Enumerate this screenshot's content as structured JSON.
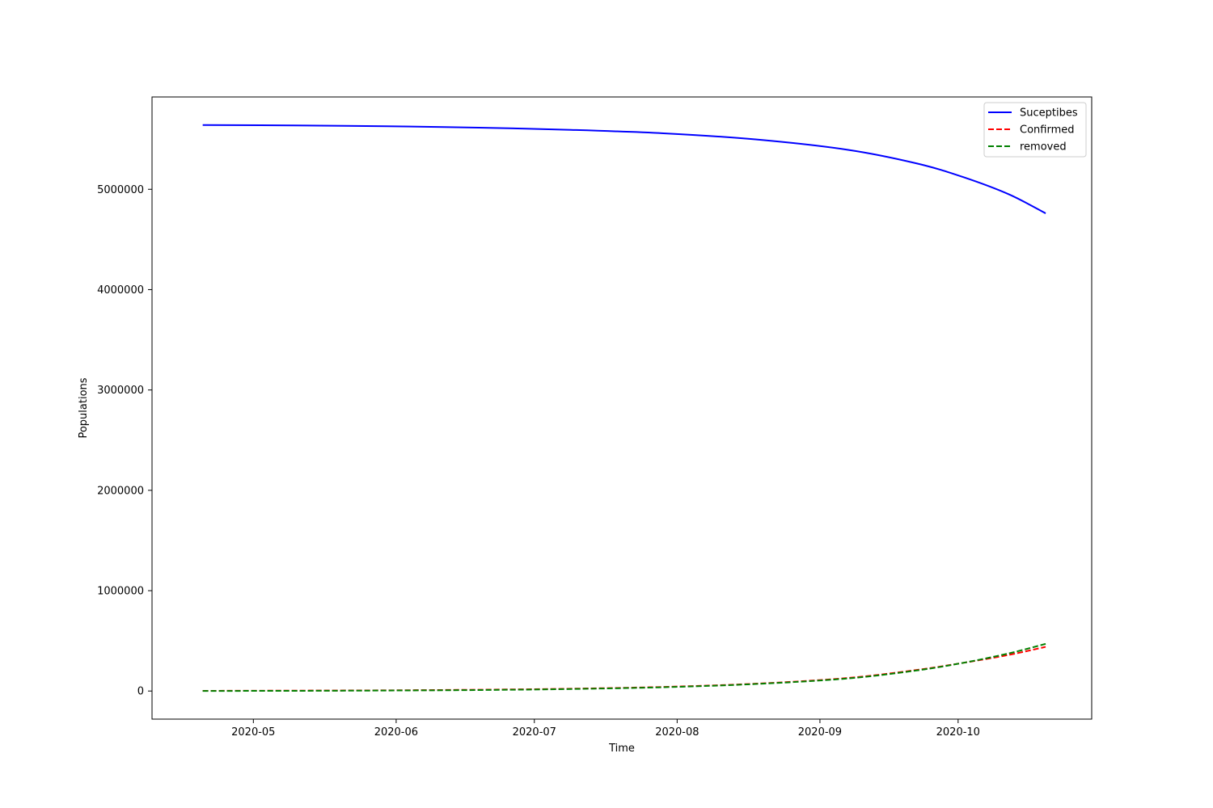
{
  "chart_data": {
    "type": "line",
    "title": "",
    "xlabel": "Time",
    "ylabel": "Populations",
    "x_ticks": [
      "2020-05",
      "2020-06",
      "2020-07",
      "2020-08",
      "2020-09",
      "2020-10"
    ],
    "y_ticks": [
      "0",
      "1000000",
      "2000000",
      "3000000",
      "4000000",
      "5000000"
    ],
    "xlim": [
      "2020-04-09",
      "2020-10-30"
    ],
    "ylim": [
      -280000,
      5920000
    ],
    "grid": false,
    "legend_position": "top-right",
    "x": [
      "2020-04-20",
      "2020-05-10",
      "2020-05-30",
      "2020-06-19",
      "2020-07-09",
      "2020-07-29",
      "2020-08-18",
      "2020-09-07",
      "2020-09-22",
      "2020-10-02",
      "2020-10-12",
      "2020-10-20"
    ],
    "series": [
      {
        "name": "Suceptibes",
        "color": "#0000ff",
        "style": "solid",
        "values": [
          5640000,
          5636000,
          5628000,
          5614000,
          5592000,
          5558000,
          5497000,
          5394000,
          5258000,
          5123000,
          4950000,
          4760000
        ]
      },
      {
        "name": "Confirmed",
        "color": "#ff0000",
        "style": "dashed",
        "values": [
          2000,
          4000,
          7000,
          13000,
          23000,
          41000,
          73000,
          130000,
          210000,
          280000,
          360000,
          440000
        ]
      },
      {
        "name": "removed",
        "color": "#008000",
        "style": "dashed",
        "values": [
          1000,
          2000,
          5000,
          10000,
          20000,
          38000,
          70000,
          125000,
          205000,
          280000,
          375000,
          470000
        ]
      }
    ]
  }
}
